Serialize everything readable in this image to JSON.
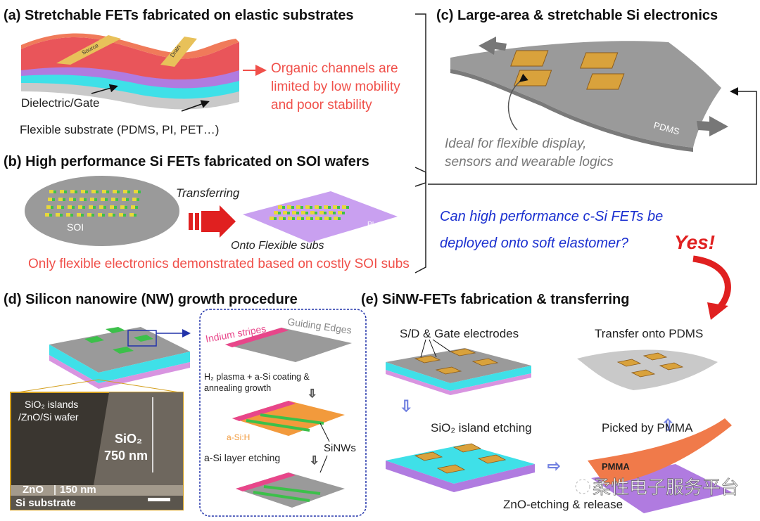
{
  "panels": {
    "a": {
      "title": "(a) Stretchable FETs fabricated on elastic substrates",
      "source_label": "Source",
      "drain_label": "Drain",
      "note_lines": [
        "Organic channels are",
        "limited by low mobility",
        "and poor stability"
      ],
      "dielectric_label": "Dielectric/Gate",
      "substrate_label": "Flexible substrate (PDMS, PI, PET…)"
    },
    "b": {
      "title": "(b) High performance Si FETs fabricated on SOI wafers",
      "soi_label": "SOI",
      "transfer_label": "Transferring",
      "pi_label": "PI",
      "flex_label": "Onto Flexible subs",
      "note": "Only flexible electronics demonstrated based on costly SOI subs"
    },
    "c": {
      "title": "(c) Large-area & stretchable Si electronics",
      "pdms_label": "PDMS",
      "note_lines": [
        "Ideal for flexible display,",
        "sensors and wearable logics"
      ]
    },
    "question": {
      "line1": "Can high performance c-Si FETs be",
      "line2": "deployed onto soft elastomer?",
      "answer": "Yes!"
    },
    "d": {
      "title": "(d) Silicon nanowire (NW) growth procedure",
      "sem": {
        "caption_line1": "SiO₂ islands",
        "caption_line2": "/ZnO/Si wafer",
        "sio2_label": "SiO₂",
        "sio2_thickness": "750 nm",
        "zno_label": "ZnO",
        "zno_thickness": "150 nm",
        "substrate_label": "Si substrate"
      },
      "steps": {
        "indium_label": "Indium stripes",
        "edges_label": "Guiding Edges",
        "step1_line1": "H₂ plasma + a-Si coating &",
        "step1_line2": "annealing growth",
        "asih_label": "a-Si:H",
        "sinw_label": "SiNWs",
        "step2": "a-Si layer etching"
      }
    },
    "e": {
      "title": "(e) SiNW-FETs fabrication & transferring",
      "electrodes_label": "S/D & Gate electrodes",
      "transfer_label": "Transfer onto PDMS",
      "etch_label": "SiO₂ island etching",
      "picked_label": "Picked by PMMA",
      "pmma_label": "PMMA",
      "release_label": "ZnO-etching & release"
    }
  },
  "watermark": "柔性电子服务平台",
  "colors": {
    "red_text": "#f0504a",
    "blue_text": "#1a2fd0",
    "channel_red": "#e9555a",
    "gold": "#e8c15a",
    "cyan": "#3fe0e8",
    "purple": "#b07be0",
    "gray": "#9a9a9a",
    "green": "#3cc04a",
    "pink": "#e8468a",
    "orange": "#f29a3c"
  }
}
